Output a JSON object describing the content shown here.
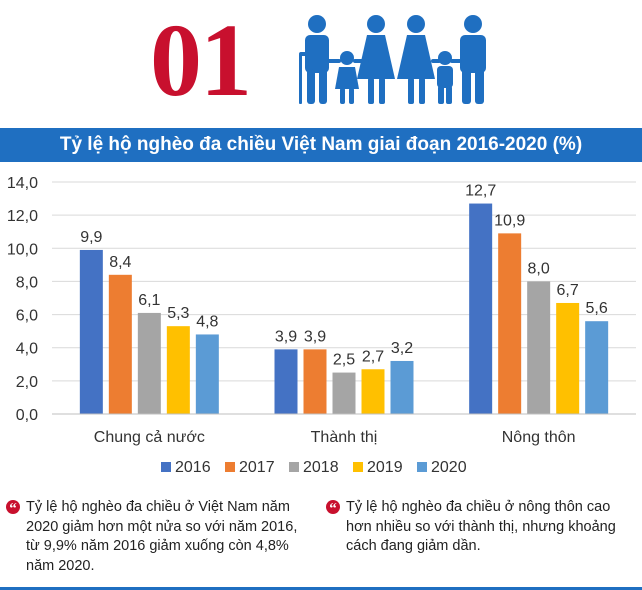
{
  "header": {
    "number": "01",
    "icon": "family-icon",
    "accent_color": "#c8102e",
    "icon_color": "#1f6fc1"
  },
  "title": "Tỷ lệ hộ nghèo đa chiều Việt Nam giai đoạn 2016-2020 (%)",
  "chart_data": {
    "type": "bar",
    "title": "Tỷ lệ hộ nghèo đa chiều Việt Nam giai đoạn 2016-2020 (%)",
    "categories": [
      "Chung cả nước",
      "Thành thị",
      "Nông thôn"
    ],
    "series": [
      {
        "name": "2016",
        "color": "#4472c4",
        "values": [
          9.9,
          3.9,
          12.7
        ],
        "labels": [
          "9,9",
          "3,9",
          "12,7"
        ]
      },
      {
        "name": "2017",
        "color": "#ed7d31",
        "values": [
          8.4,
          3.9,
          10.9
        ],
        "labels": [
          "8,4",
          "3,9",
          "10,9"
        ]
      },
      {
        "name": "2018",
        "color": "#a5a5a5",
        "values": [
          6.1,
          2.5,
          8.0
        ],
        "labels": [
          "6,1",
          "2,5",
          "8,0"
        ]
      },
      {
        "name": "2019",
        "color": "#ffc000",
        "values": [
          5.3,
          2.7,
          6.7
        ],
        "labels": [
          "5,3",
          "2,7",
          "6,7"
        ]
      },
      {
        "name": "2020",
        "color": "#5b9bd5",
        "values": [
          4.8,
          3.2,
          5.6
        ],
        "labels": [
          "4,8",
          "3,2",
          "5,6"
        ]
      }
    ],
    "ylim": [
      0,
      14
    ],
    "yticks": [
      "0,0",
      "2,0",
      "4,0",
      "6,0",
      "8,0",
      "10,0",
      "12,0",
      "14,0"
    ],
    "grid": true,
    "legend_position": "bottom"
  },
  "notes": [
    {
      "text": "Tỷ lệ hộ nghèo đa chiều ở Việt Nam năm 2020 giảm hơn một nửa so với năm 2016, từ 9,9% năm 2016 giảm xuống còn 4,8% năm 2020."
    },
    {
      "text": "Tỷ lệ hộ nghèo đa chiều ở nông thôn cao hơn nhiều so với thành thị, nhưng khoảng cách đang giảm dần."
    }
  ]
}
